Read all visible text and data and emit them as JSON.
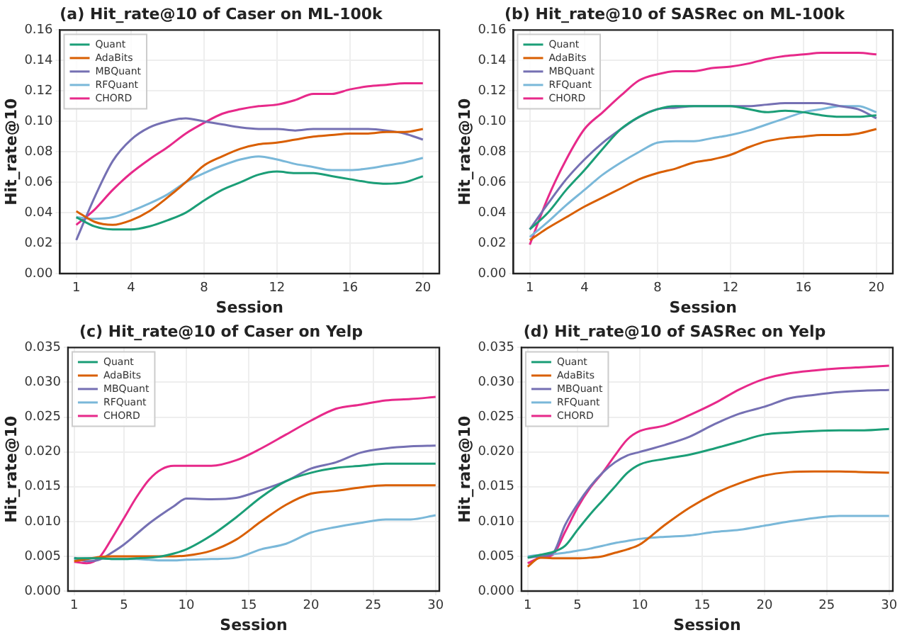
{
  "chart_data": [
    {
      "type": "line",
      "title": "(a) Hit_rate@10 of Caser on ML-100k",
      "xlabel": "Session",
      "ylabel": "Hit_rate@10",
      "x": [
        1,
        2,
        3,
        4,
        5,
        6,
        7,
        8,
        9,
        10,
        11,
        12,
        13,
        14,
        15,
        16,
        17,
        18,
        19,
        20
      ],
      "xlim": [
        0.1,
        20.9
      ],
      "xticks": [
        1,
        4,
        8,
        12,
        16,
        20
      ],
      "ylim": [
        0,
        0.16
      ],
      "yticks": [
        {
          "value": 0,
          "label": "0.00"
        },
        {
          "value": 0.02,
          "label": "0.02"
        },
        {
          "value": 0.04,
          "label": "0.04"
        },
        {
          "value": 0.06,
          "label": "0.06"
        },
        {
          "value": 0.08,
          "label": "0.08"
        },
        {
          "value": 0.1,
          "label": "0.10"
        },
        {
          "value": 0.12,
          "label": "0.12"
        },
        {
          "value": 0.14,
          "label": "0.14"
        },
        {
          "value": 0.16,
          "label": "0.16"
        }
      ],
      "grid": true,
      "legend": "top left",
      "marker": "none",
      "series": [
        {
          "name": "Quant",
          "color": "#1b9e77",
          "values": [
            0.037,
            0.031,
            0.029,
            0.029,
            0.031,
            0.035,
            0.04,
            0.048,
            0.055,
            0.06,
            0.065,
            0.067,
            0.066,
            0.066,
            0.064,
            0.062,
            0.06,
            0.059,
            0.06,
            0.064
          ]
        },
        {
          "name": "AdaBits",
          "color": "#d95f02",
          "values": [
            0.041,
            0.034,
            0.032,
            0.035,
            0.041,
            0.05,
            0.06,
            0.071,
            0.077,
            0.082,
            0.085,
            0.086,
            0.088,
            0.09,
            0.091,
            0.092,
            0.092,
            0.093,
            0.093,
            0.095
          ]
        },
        {
          "name": "MBQuant",
          "color": "#7570b3",
          "values": [
            0.022,
            0.05,
            0.074,
            0.088,
            0.096,
            0.1,
            0.102,
            0.1,
            0.098,
            0.096,
            0.095,
            0.095,
            0.094,
            0.095,
            0.095,
            0.095,
            0.095,
            0.094,
            0.092,
            0.088
          ]
        },
        {
          "name": "RFQuant",
          "color": "#7ab8d9",
          "values": [
            0.037,
            0.036,
            0.037,
            0.041,
            0.046,
            0.052,
            0.06,
            0.066,
            0.071,
            0.075,
            0.077,
            0.075,
            0.072,
            0.07,
            0.068,
            0.068,
            0.069,
            0.071,
            0.073,
            0.076
          ]
        },
        {
          "name": "CHORD",
          "color": "#e7298a",
          "values": [
            0.032,
            0.042,
            0.055,
            0.066,
            0.075,
            0.083,
            0.092,
            0.099,
            0.105,
            0.108,
            0.11,
            0.111,
            0.114,
            0.118,
            0.118,
            0.121,
            0.123,
            0.124,
            0.125,
            0.125
          ]
        }
      ]
    },
    {
      "type": "line",
      "title": "(b) Hit_rate@10 of SASRec on ML-100k",
      "xlabel": "Session",
      "ylabel": "Hit_rate@10",
      "x": [
        1,
        2,
        3,
        4,
        5,
        6,
        7,
        8,
        9,
        10,
        11,
        12,
        13,
        14,
        15,
        16,
        17,
        18,
        19,
        20
      ],
      "xlim": [
        0.1,
        20.9
      ],
      "xticks": [
        1,
        4,
        8,
        12,
        16,
        20
      ],
      "ylim": [
        0,
        0.16
      ],
      "yticks": [
        {
          "value": 0,
          "label": "0.00"
        },
        {
          "value": 0.02,
          "label": "0.02"
        },
        {
          "value": 0.04,
          "label": "0.04"
        },
        {
          "value": 0.06,
          "label": "0.06"
        },
        {
          "value": 0.08,
          "label": "0.08"
        },
        {
          "value": 0.1,
          "label": "0.10"
        },
        {
          "value": 0.12,
          "label": "0.12"
        },
        {
          "value": 0.14,
          "label": "0.14"
        },
        {
          "value": 0.16,
          "label": "0.16"
        }
      ],
      "grid": true,
      "legend": "top left",
      "marker": "none",
      "series": [
        {
          "name": "Quant",
          "color": "#1b9e77",
          "values": [
            0.029,
            0.04,
            0.055,
            0.068,
            0.082,
            0.095,
            0.103,
            0.108,
            0.11,
            0.11,
            0.11,
            0.11,
            0.108,
            0.106,
            0.107,
            0.106,
            0.104,
            0.103,
            0.103,
            0.104
          ]
        },
        {
          "name": "AdaBits",
          "color": "#d95f02",
          "values": [
            0.022,
            0.03,
            0.037,
            0.044,
            0.05,
            0.056,
            0.062,
            0.066,
            0.069,
            0.073,
            0.075,
            0.078,
            0.083,
            0.087,
            0.089,
            0.09,
            0.091,
            0.091,
            0.092,
            0.095
          ]
        },
        {
          "name": "MBQuant",
          "color": "#7570b3",
          "values": [
            0.029,
            0.046,
            0.062,
            0.075,
            0.086,
            0.095,
            0.103,
            0.108,
            0.109,
            0.11,
            0.11,
            0.11,
            0.11,
            0.111,
            0.112,
            0.112,
            0.112,
            0.11,
            0.108,
            0.102
          ]
        },
        {
          "name": "RFQuant",
          "color": "#7ab8d9",
          "values": [
            0.024,
            0.034,
            0.045,
            0.055,
            0.065,
            0.073,
            0.08,
            0.086,
            0.087,
            0.087,
            0.089,
            0.091,
            0.094,
            0.098,
            0.102,
            0.106,
            0.108,
            0.11,
            0.11,
            0.106
          ]
        },
        {
          "name": "CHORD",
          "color": "#e7298a",
          "values": [
            0.019,
            0.05,
            0.075,
            0.095,
            0.106,
            0.117,
            0.127,
            0.131,
            0.133,
            0.133,
            0.135,
            0.136,
            0.138,
            0.141,
            0.143,
            0.144,
            0.145,
            0.145,
            0.145,
            0.144
          ]
        }
      ]
    },
    {
      "type": "line",
      "title": "(c) Hit_rate@10 of Caser on Yelp",
      "xlabel": "Session",
      "ylabel": "Hit_rate@10",
      "x": [
        1,
        2,
        3,
        4,
        5,
        6,
        7,
        8,
        9,
        10,
        12,
        14,
        16,
        18,
        20,
        22,
        24,
        26,
        28,
        30
      ],
      "xlim": [
        0.5,
        30.3
      ],
      "xticks": [
        1,
        5,
        10,
        15,
        20,
        25,
        30
      ],
      "ylim": [
        0,
        0.035
      ],
      "yticks": [
        {
          "value": 0,
          "label": "0.000"
        },
        {
          "value": 0.005,
          "label": "0.005"
        },
        {
          "value": 0.01,
          "label": "0.010"
        },
        {
          "value": 0.015,
          "label": "0.015"
        },
        {
          "value": 0.02,
          "label": "0.020"
        },
        {
          "value": 0.025,
          "label": "0.025"
        },
        {
          "value": 0.03,
          "label": "0.030"
        },
        {
          "value": 0.035,
          "label": "0.035"
        }
      ],
      "grid": true,
      "legend": "top left",
      "marker": "none",
      "series": [
        {
          "name": "Quant",
          "color": "#1b9e77",
          "values": [
            0.0047,
            0.0047,
            0.0047,
            0.0046,
            0.0046,
            0.0047,
            0.0048,
            0.005,
            0.0054,
            0.006,
            0.008,
            0.0106,
            0.0135,
            0.0158,
            0.017,
            0.0177,
            0.018,
            0.0183,
            0.0183,
            0.0183
          ]
        },
        {
          "name": "AdaBits",
          "color": "#d95f02",
          "values": [
            0.0043,
            0.0046,
            0.0049,
            0.005,
            0.005,
            0.005,
            0.005,
            0.005,
            0.005,
            0.0051,
            0.0058,
            0.0074,
            0.01,
            0.0124,
            0.014,
            0.0144,
            0.0149,
            0.0152,
            0.0152,
            0.0152
          ]
        },
        {
          "name": "MBQuant",
          "color": "#7570b3",
          "values": [
            0.0048,
            0.0043,
            0.0045,
            0.0055,
            0.0067,
            0.0082,
            0.0097,
            0.011,
            0.0122,
            0.0133,
            0.0132,
            0.0134,
            0.0145,
            0.0158,
            0.0176,
            0.0185,
            0.0199,
            0.0205,
            0.0208,
            0.0209
          ]
        },
        {
          "name": "RFQuant",
          "color": "#7ab8d9",
          "values": [
            0.0046,
            0.0047,
            0.0047,
            0.0046,
            0.0046,
            0.0046,
            0.0045,
            0.0044,
            0.0044,
            0.0045,
            0.0046,
            0.0048,
            0.006,
            0.0068,
            0.0084,
            0.0092,
            0.0098,
            0.0103,
            0.0103,
            0.0109
          ]
        },
        {
          "name": "CHORD",
          "color": "#e7298a",
          "values": [
            0.0042,
            0.004,
            0.0048,
            0.0075,
            0.0105,
            0.0135,
            0.016,
            0.0175,
            0.018,
            0.018,
            0.018,
            0.0188,
            0.0205,
            0.0225,
            0.0245,
            0.0262,
            0.0268,
            0.0274,
            0.0276,
            0.0279
          ]
        }
      ]
    },
    {
      "type": "line",
      "title": "(d) Hit_rate@10 of SASRec on Yelp",
      "xlabel": "Session",
      "ylabel": "Hit_rate@10",
      "x": [
        1,
        2,
        3,
        4,
        5,
        6,
        7,
        8,
        9,
        10,
        12,
        14,
        16,
        18,
        20,
        22,
        24,
        26,
        28,
        30
      ],
      "xlim": [
        0.5,
        30.3
      ],
      "xticks": [
        1,
        5,
        10,
        15,
        20,
        25,
        30
      ],
      "ylim": [
        0,
        0.035
      ],
      "yticks": [
        {
          "value": 0,
          "label": "0.000"
        },
        {
          "value": 0.005,
          "label": "0.005"
        },
        {
          "value": 0.01,
          "label": "0.010"
        },
        {
          "value": 0.015,
          "label": "0.015"
        },
        {
          "value": 0.02,
          "label": "0.020"
        },
        {
          "value": 0.025,
          "label": "0.025"
        },
        {
          "value": 0.03,
          "label": "0.030"
        },
        {
          "value": 0.035,
          "label": "0.035"
        }
      ],
      "grid": true,
      "legend": "top left",
      "marker": "none",
      "series": [
        {
          "name": "Quant",
          "color": "#1b9e77",
          "values": [
            0.0048,
            0.0052,
            0.0056,
            0.0065,
            0.0088,
            0.011,
            0.013,
            0.015,
            0.017,
            0.0182,
            0.019,
            0.0196,
            0.0205,
            0.0215,
            0.0225,
            0.0228,
            0.023,
            0.0231,
            0.0231,
            0.0233
          ]
        },
        {
          "name": "AdaBits",
          "color": "#d95f02",
          "values": [
            0.0035,
            0.0048,
            0.0047,
            0.0047,
            0.0047,
            0.0048,
            0.005,
            0.0055,
            0.006,
            0.0067,
            0.0095,
            0.012,
            0.014,
            0.0155,
            0.0166,
            0.0171,
            0.0172,
            0.0172,
            0.0171,
            0.017
          ]
        },
        {
          "name": "MBQuant",
          "color": "#7570b3",
          "values": [
            0.0048,
            0.005,
            0.0054,
            0.0095,
            0.0125,
            0.015,
            0.017,
            0.0185,
            0.0195,
            0.02,
            0.021,
            0.0222,
            0.024,
            0.0255,
            0.0265,
            0.0277,
            0.0282,
            0.0286,
            0.0288,
            0.0289
          ]
        },
        {
          "name": "RFQuant",
          "color": "#7ab8d9",
          "values": [
            0.005,
            0.0052,
            0.0053,
            0.0055,
            0.0058,
            0.0061,
            0.0065,
            0.0069,
            0.0072,
            0.0075,
            0.0078,
            0.008,
            0.0085,
            0.0088,
            0.0094,
            0.01,
            0.0105,
            0.0108,
            0.0108,
            0.0108
          ]
        },
        {
          "name": "CHORD",
          "color": "#e7298a",
          "values": [
            0.004,
            0.0048,
            0.0052,
            0.0085,
            0.012,
            0.0148,
            0.017,
            0.0195,
            0.0218,
            0.023,
            0.0238,
            0.0253,
            0.027,
            0.029,
            0.0305,
            0.0313,
            0.0317,
            0.032,
            0.0322,
            0.0324
          ]
        }
      ]
    }
  ]
}
